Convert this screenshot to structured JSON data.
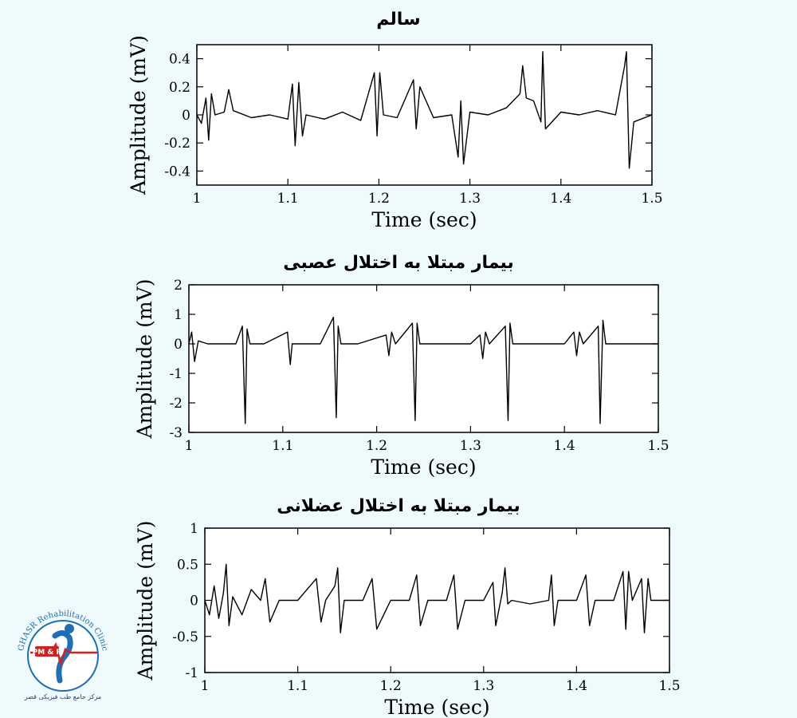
{
  "chart_data": [
    {
      "type": "line",
      "title": "سالم",
      "xlabel": "Time (sec)",
      "ylabel": "Amplitude (mV)",
      "xlim": [
        1,
        1.5
      ],
      "ylim": [
        -0.5,
        0.5
      ],
      "xticks": [
        "1",
        "1.1",
        "1.2",
        "1.3",
        "1.4",
        "1.5"
      ],
      "yticks": [
        "0.4",
        "0.2",
        "0",
        "-0.2",
        "-0.4"
      ],
      "ytick_values": [
        0.4,
        0.2,
        0,
        -0.2,
        -0.4
      ],
      "grid": false,
      "series": [
        {
          "x": [
            1.0,
            1.005,
            1.01,
            1.013,
            1.016,
            1.02,
            1.03,
            1.035,
            1.04,
            1.06,
            1.08,
            1.1,
            1.105,
            1.108,
            1.112,
            1.116,
            1.12,
            1.14,
            1.16,
            1.18,
            1.195,
            1.198,
            1.201,
            1.205,
            1.22,
            1.238,
            1.241,
            1.245,
            1.26,
            1.28,
            1.287,
            1.29,
            1.293,
            1.3,
            1.32,
            1.34,
            1.355,
            1.358,
            1.362,
            1.37,
            1.378,
            1.38,
            1.383,
            1.4,
            1.42,
            1.44,
            1.46,
            1.47,
            1.472,
            1.475,
            1.48,
            1.5
          ],
          "values": [
            0.0,
            -0.06,
            0.12,
            -0.18,
            0.15,
            0.0,
            0.02,
            0.18,
            0.03,
            -0.02,
            0.0,
            -0.03,
            0.22,
            -0.22,
            0.23,
            -0.15,
            0.0,
            -0.03,
            0.02,
            -0.04,
            0.3,
            -0.15,
            0.3,
            0.0,
            -0.02,
            0.25,
            -0.1,
            0.2,
            -0.02,
            0.0,
            -0.3,
            0.1,
            -0.35,
            0.02,
            0.0,
            0.05,
            0.15,
            0.35,
            0.12,
            0.1,
            -0.05,
            0.45,
            -0.1,
            0.02,
            0.0,
            0.03,
            0.0,
            0.35,
            0.45,
            -0.38,
            -0.05,
            0.0
          ]
        }
      ]
    },
    {
      "type": "line",
      "title": "بیمار مبتلا به اختلال عصبی",
      "xlabel": "Time (sec)",
      "ylabel": "Amplitude (mV)",
      "xlim": [
        1,
        1.5
      ],
      "ylim": [
        -3,
        2
      ],
      "xticks": [
        "1",
        "1.1",
        "1.2",
        "1.3",
        "1.4",
        "1.5"
      ],
      "yticks": [
        "2",
        "1",
        "0",
        "-1",
        "-2",
        "-3"
      ],
      "ytick_values": [
        2,
        1,
        0,
        -1,
        -2,
        -3
      ],
      "grid": false,
      "series": [
        {
          "x": [
            1.0,
            1.003,
            1.006,
            1.01,
            1.02,
            1.05,
            1.057,
            1.06,
            1.062,
            1.065,
            1.08,
            1.105,
            1.108,
            1.11,
            1.14,
            1.154,
            1.157,
            1.159,
            1.162,
            1.18,
            1.21,
            1.213,
            1.216,
            1.22,
            1.238,
            1.241,
            1.243,
            1.246,
            1.26,
            1.3,
            1.31,
            1.313,
            1.316,
            1.32,
            1.337,
            1.34,
            1.342,
            1.345,
            1.36,
            1.4,
            1.41,
            1.413,
            1.416,
            1.42,
            1.436,
            1.438,
            1.441,
            1.444,
            1.46,
            1.5
          ],
          "values": [
            0.0,
            0.4,
            -0.6,
            0.1,
            0.0,
            0.0,
            0.6,
            -2.7,
            0.5,
            0.0,
            0.0,
            0.4,
            -0.7,
            0.0,
            0.0,
            0.9,
            -2.5,
            0.6,
            0.0,
            0.0,
            0.3,
            -0.4,
            0.4,
            0.0,
            0.7,
            -2.6,
            0.7,
            0.0,
            0.0,
            0.0,
            0.3,
            -0.5,
            0.4,
            0.0,
            0.6,
            -2.6,
            0.7,
            0.0,
            0.0,
            0.0,
            0.4,
            -0.4,
            0.4,
            0.0,
            0.6,
            -2.7,
            0.8,
            0.0,
            0.0,
            0.0
          ]
        }
      ]
    },
    {
      "type": "line",
      "title": "بیمار مبتلا به اختلال عضلانی",
      "xlabel": "Time (sec)",
      "ylabel": "Amplitude (mV)",
      "xlim": [
        1,
        1.5
      ],
      "ylim": [
        -1,
        1
      ],
      "xticks": [
        "1",
        "1.1",
        "1.2",
        "1.3",
        "1.4",
        "1.5"
      ],
      "yticks": [
        "1",
        "0.5",
        "0",
        "-0.5",
        "-1"
      ],
      "ytick_values": [
        1,
        0.5,
        0,
        -0.5,
        -1
      ],
      "grid": false,
      "series": [
        {
          "x": [
            1.0,
            1.005,
            1.01,
            1.015,
            1.02,
            1.023,
            1.026,
            1.03,
            1.04,
            1.05,
            1.06,
            1.065,
            1.07,
            1.08,
            1.1,
            1.12,
            1.125,
            1.13,
            1.14,
            1.143,
            1.146,
            1.15,
            1.17,
            1.18,
            1.185,
            1.2,
            1.22,
            1.228,
            1.232,
            1.24,
            1.26,
            1.268,
            1.272,
            1.28,
            1.3,
            1.31,
            1.313,
            1.32,
            1.323,
            1.326,
            1.33,
            1.35,
            1.37,
            1.373,
            1.376,
            1.38,
            1.4,
            1.41,
            1.414,
            1.42,
            1.44,
            1.45,
            1.453,
            1.456,
            1.46,
            1.47,
            1.473,
            1.477,
            1.48,
            1.5
          ],
          "values": [
            0.0,
            -0.2,
            0.2,
            -0.25,
            0.1,
            0.5,
            -0.35,
            0.05,
            -0.2,
            0.15,
            0.0,
            0.3,
            -0.3,
            0.0,
            0.0,
            0.3,
            -0.3,
            0.0,
            0.2,
            0.45,
            -0.45,
            0.0,
            0.0,
            0.3,
            -0.4,
            0.0,
            0.0,
            0.35,
            -0.35,
            0.0,
            0.0,
            0.35,
            -0.4,
            0.0,
            0.0,
            0.25,
            -0.35,
            0.1,
            0.45,
            -0.05,
            0.0,
            -0.05,
            0.0,
            0.35,
            -0.35,
            0.0,
            0.0,
            0.35,
            -0.35,
            0.0,
            0.0,
            0.4,
            -0.4,
            0.4,
            0.0,
            0.3,
            -0.45,
            0.3,
            0.0,
            0.0
          ]
        }
      ]
    }
  ],
  "logo": {
    "name": "GHASR Rehabilitation Clinic",
    "badge": "PM & R",
    "subtitle_fa": "مرکز جامع طب فیزیکی قصر"
  }
}
